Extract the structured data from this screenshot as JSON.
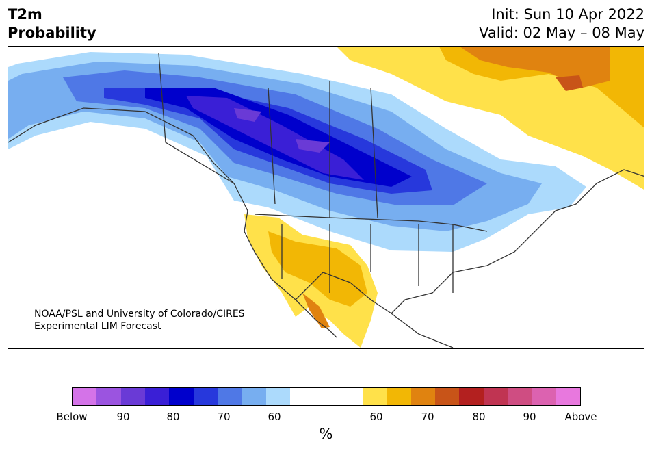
{
  "title": {
    "line1": "T2m",
    "line2": "Probability"
  },
  "dates": {
    "init": "Init: Sun 10 Apr 2022",
    "valid": "Valid: 02 May – 08 May"
  },
  "credit": {
    "line1": "NOAA/PSL and University of Colorado/CIRES",
    "line2": "Experimental LIM Forecast"
  },
  "colorbar": {
    "unit": "%",
    "segments": [
      {
        "color": "#d473e8",
        "wide": false
      },
      {
        "color": "#9b54e0",
        "wide": false
      },
      {
        "color": "#6a3ad6",
        "wide": false
      },
      {
        "color": "#3a1fd6",
        "wide": false
      },
      {
        "color": "#0000cc",
        "wide": false
      },
      {
        "color": "#2738dc",
        "wide": false
      },
      {
        "color": "#4f78e6",
        "wide": false
      },
      {
        "color": "#77aef0",
        "wide": false
      },
      {
        "color": "#acdafc",
        "wide": false
      },
      {
        "color": "#ffffff",
        "wide": true
      },
      {
        "color": "#ffe14a",
        "wide": false
      },
      {
        "color": "#f2b705",
        "wide": false
      },
      {
        "color": "#e08310",
        "wide": false
      },
      {
        "color": "#c85418",
        "wide": false
      },
      {
        "color": "#b3201f",
        "wide": false
      },
      {
        "color": "#c03452",
        "wide": false
      },
      {
        "color": "#cf4d82",
        "wide": false
      },
      {
        "color": "#dc62b0",
        "wide": false
      },
      {
        "color": "#e878de",
        "wide": false
      }
    ],
    "ticks": [
      "Below",
      "90",
      "80",
      "70",
      "60",
      "60",
      "70",
      "80",
      "90",
      "Above"
    ]
  },
  "map": {
    "colors": {
      "cold_light": "#acdafc",
      "cold_2": "#77aef0",
      "cold_3": "#4f78e6",
      "cold_4": "#2738dc",
      "cold_5": "#0000cc",
      "cold_6": "#3a1fd6",
      "cold_7": "#6a3ad6",
      "warm_1": "#ffe14a",
      "warm_2": "#f2b705",
      "warm_3": "#e08310",
      "warm_4": "#c85418",
      "coast": "#333333"
    }
  }
}
